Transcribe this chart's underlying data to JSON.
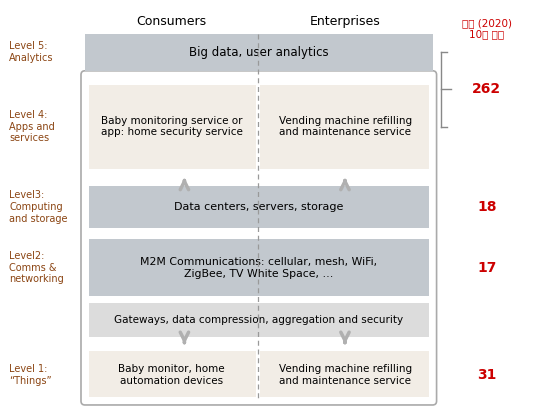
{
  "header_consumers": "Consumers",
  "header_enterprises": "Enterprises",
  "revenue_label": "매출 (2020)\n10억 달러",
  "revenue_color": "#cc0000",
  "level_label_color": "#8B4513",
  "arrow_color": "#b0b0b0",
  "dashed_line_color": "#999999",
  "levels": [
    {
      "label": "Level 5:\nAnalytics",
      "type": "full_span",
      "text": "Big data, user analytics",
      "fill": "#c0c8d0",
      "revenue": null,
      "revenue_bracket": true
    },
    {
      "label": "Level 4:\nApps and\nservices",
      "type": "split",
      "text_left": "Baby monitoring service or\napp: home security service",
      "text_right": "Vending machine refilling\nand maintenance service",
      "fill": "#f0ede8",
      "revenue": null,
      "revenue_bracket": true
    },
    {
      "label": "Level3:\nComputing\nand storage",
      "type": "full_span",
      "text": "Data centers, servers, storage",
      "fill": "#c8ccd0",
      "revenue": "18",
      "revenue_bracket": false
    },
    {
      "label": "Level2:\nComms &\nnetworking",
      "type": "full_span",
      "text": "M2M Communications: cellular, mesh, WiFi,\nZigBee, TV White Space, …",
      "fill": "#c8ccd0",
      "revenue": "17",
      "revenue_bracket": false
    },
    {
      "label": "",
      "type": "full_span",
      "text": "Gateways, data compression, aggregation and security",
      "fill": "#e8e8e8",
      "revenue": null,
      "revenue_bracket": false
    },
    {
      "label": "Level 1:\n“Things”",
      "type": "split",
      "text_left": "Baby monitor, home\nautomation devices",
      "text_right": "Vending machine refilling\nand maintenance service",
      "fill": "#f0ede8",
      "revenue": "31",
      "revenue_bracket": false
    }
  ]
}
